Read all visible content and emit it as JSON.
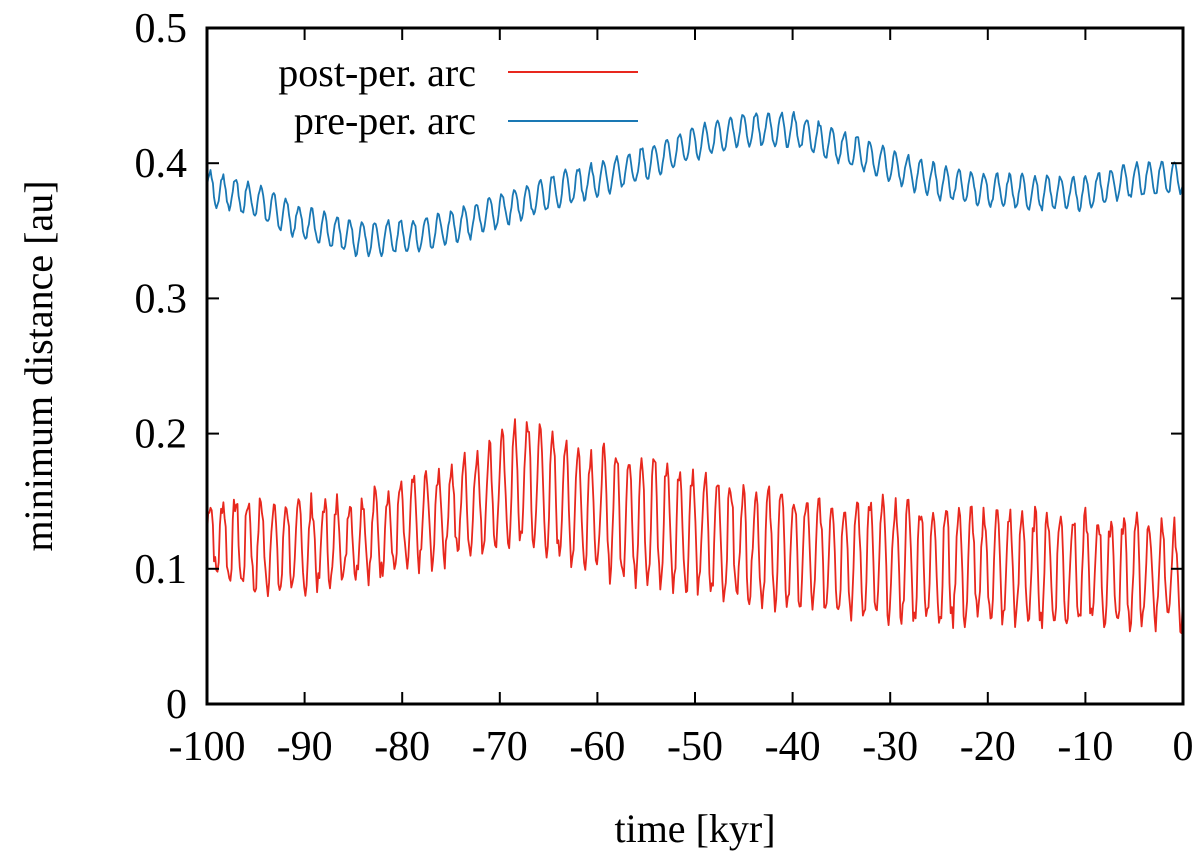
{
  "chart_data": {
    "type": "line",
    "xlabel": "time [kyr]",
    "ylabel": "minimum distance [au]",
    "xlim": [
      -100,
      0
    ],
    "ylim": [
      0,
      0.5
    ],
    "x_ticks": [
      -100,
      -90,
      -80,
      -70,
      -60,
      -50,
      -40,
      -30,
      -20,
      -10,
      0
    ],
    "x_tick_labels": [
      "-100",
      "-90",
      "-80",
      "-70",
      "-60",
      "-50",
      "-40",
      "-30",
      "-20",
      "-10",
      "0"
    ],
    "y_ticks": [
      0,
      0.1,
      0.2,
      0.3,
      0.4,
      0.5
    ],
    "y_tick_labels": [
      "0",
      "0.1",
      "0.2",
      "0.3",
      "0.4",
      "0.5"
    ],
    "grid": false,
    "legend_position": "top-left",
    "series": [
      {
        "name": "post-per. arc",
        "color": "#e8281e",
        "x": [
          -100,
          -95,
          -90,
          -85,
          -80,
          -75,
          -70,
          -67,
          -65,
          -60,
          -55,
          -50,
          -45,
          -40,
          -35,
          -30,
          -25,
          -20,
          -15,
          -10,
          -5,
          0
        ],
        "y_lower": [
          0.1,
          0.085,
          0.085,
          0.095,
          0.1,
          0.11,
          0.12,
          0.12,
          0.115,
          0.1,
          0.09,
          0.085,
          0.08,
          0.075,
          0.07,
          0.065,
          0.062,
          0.062,
          0.062,
          0.062,
          0.06,
          0.06
        ],
        "y_upper": [
          0.15,
          0.15,
          0.148,
          0.15,
          0.16,
          0.175,
          0.195,
          0.21,
          0.195,
          0.185,
          0.185,
          0.17,
          0.158,
          0.152,
          0.15,
          0.148,
          0.145,
          0.142,
          0.14,
          0.138,
          0.135,
          0.128
        ],
        "oscillation_period_kyr": 1.3
      },
      {
        "name": "pre-per. arc",
        "color": "#1a78b4",
        "x": [
          -100,
          -95,
          -90,
          -85,
          -80,
          -75,
          -70,
          -65,
          -60,
          -55,
          -50,
          -45,
          -40,
          -35,
          -30,
          -25,
          -20,
          -15,
          -10,
          -5,
          0
        ],
        "y_mid": [
          0.382,
          0.372,
          0.355,
          0.345,
          0.345,
          0.352,
          0.365,
          0.378,
          0.388,
          0.4,
          0.415,
          0.425,
          0.425,
          0.412,
          0.398,
          0.386,
          0.38,
          0.378,
          0.378,
          0.388,
          0.39
        ],
        "oscillation_amplitude": 0.012,
        "oscillation_period_kyr": 1.3
      }
    ]
  }
}
